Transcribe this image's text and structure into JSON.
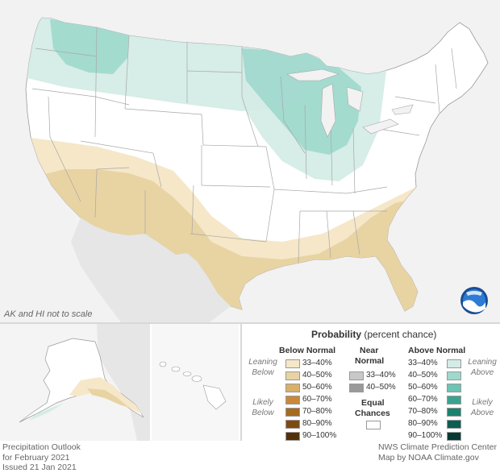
{
  "map": {
    "note": "AK and HI not to scale",
    "colors": {
      "background": "#f2f2f2",
      "land": "#ffffff",
      "border": "#aaaaaa",
      "below_33_40": "#f5e7c8",
      "below_40_50": "#e8d3a3",
      "above_33_40": "#d5ece6",
      "above_40_50": "#9fd8cc"
    }
  },
  "legend": {
    "title_bold": "Probability",
    "title_rest": " (percent chance)",
    "below_header": "Below Normal",
    "near_header_1": "Near",
    "near_header_2": "Normal",
    "above_header": "Above Normal",
    "leaning_below_1": "Leaning",
    "leaning_below_2": "Below",
    "likely_below_1": "Likely",
    "likely_below_2": "Below",
    "leaning_above_1": "Leaning",
    "leaning_above_2": "Above",
    "likely_above_1": "Likely",
    "likely_above_2": "Above",
    "equal_1": "Equal",
    "equal_2": "Chances",
    "below": [
      {
        "label": "33–40%",
        "color": "#f5e7c8"
      },
      {
        "label": "40–50%",
        "color": "#e8d3a3"
      },
      {
        "label": "50–60%",
        "color": "#d9b06a"
      },
      {
        "label": "60–70%",
        "color": "#c88a3a"
      },
      {
        "label": "70–80%",
        "color": "#a66b20"
      },
      {
        "label": "80–90%",
        "color": "#7f4a12"
      },
      {
        "label": "90–100%",
        "color": "#54300a"
      }
    ],
    "near": [
      {
        "label": "33–40%",
        "color": "#c8c8c8"
      },
      {
        "label": "40–50%",
        "color": "#9a9a9a"
      }
    ],
    "above": [
      {
        "label": "33–40%",
        "color": "#d5ece6"
      },
      {
        "label": "40–50%",
        "color": "#9fd8cc"
      },
      {
        "label": "50–60%",
        "color": "#6cc4b3"
      },
      {
        "label": "60–70%",
        "color": "#3aa38f"
      },
      {
        "label": "70–80%",
        "color": "#1b8270"
      },
      {
        "label": "80–90%",
        "color": "#0c5e50"
      },
      {
        "label": "90–100%",
        "color": "#053b32"
      }
    ],
    "equal_color": "#ffffff"
  },
  "footer": {
    "left_1": "Precipitation Outlook",
    "left_2": "for February 2021",
    "left_3": "Issued 21 Jan 2021",
    "right_1": "NWS Climate Prediction Center",
    "right_2": "Map by NOAA Climate.gov"
  }
}
